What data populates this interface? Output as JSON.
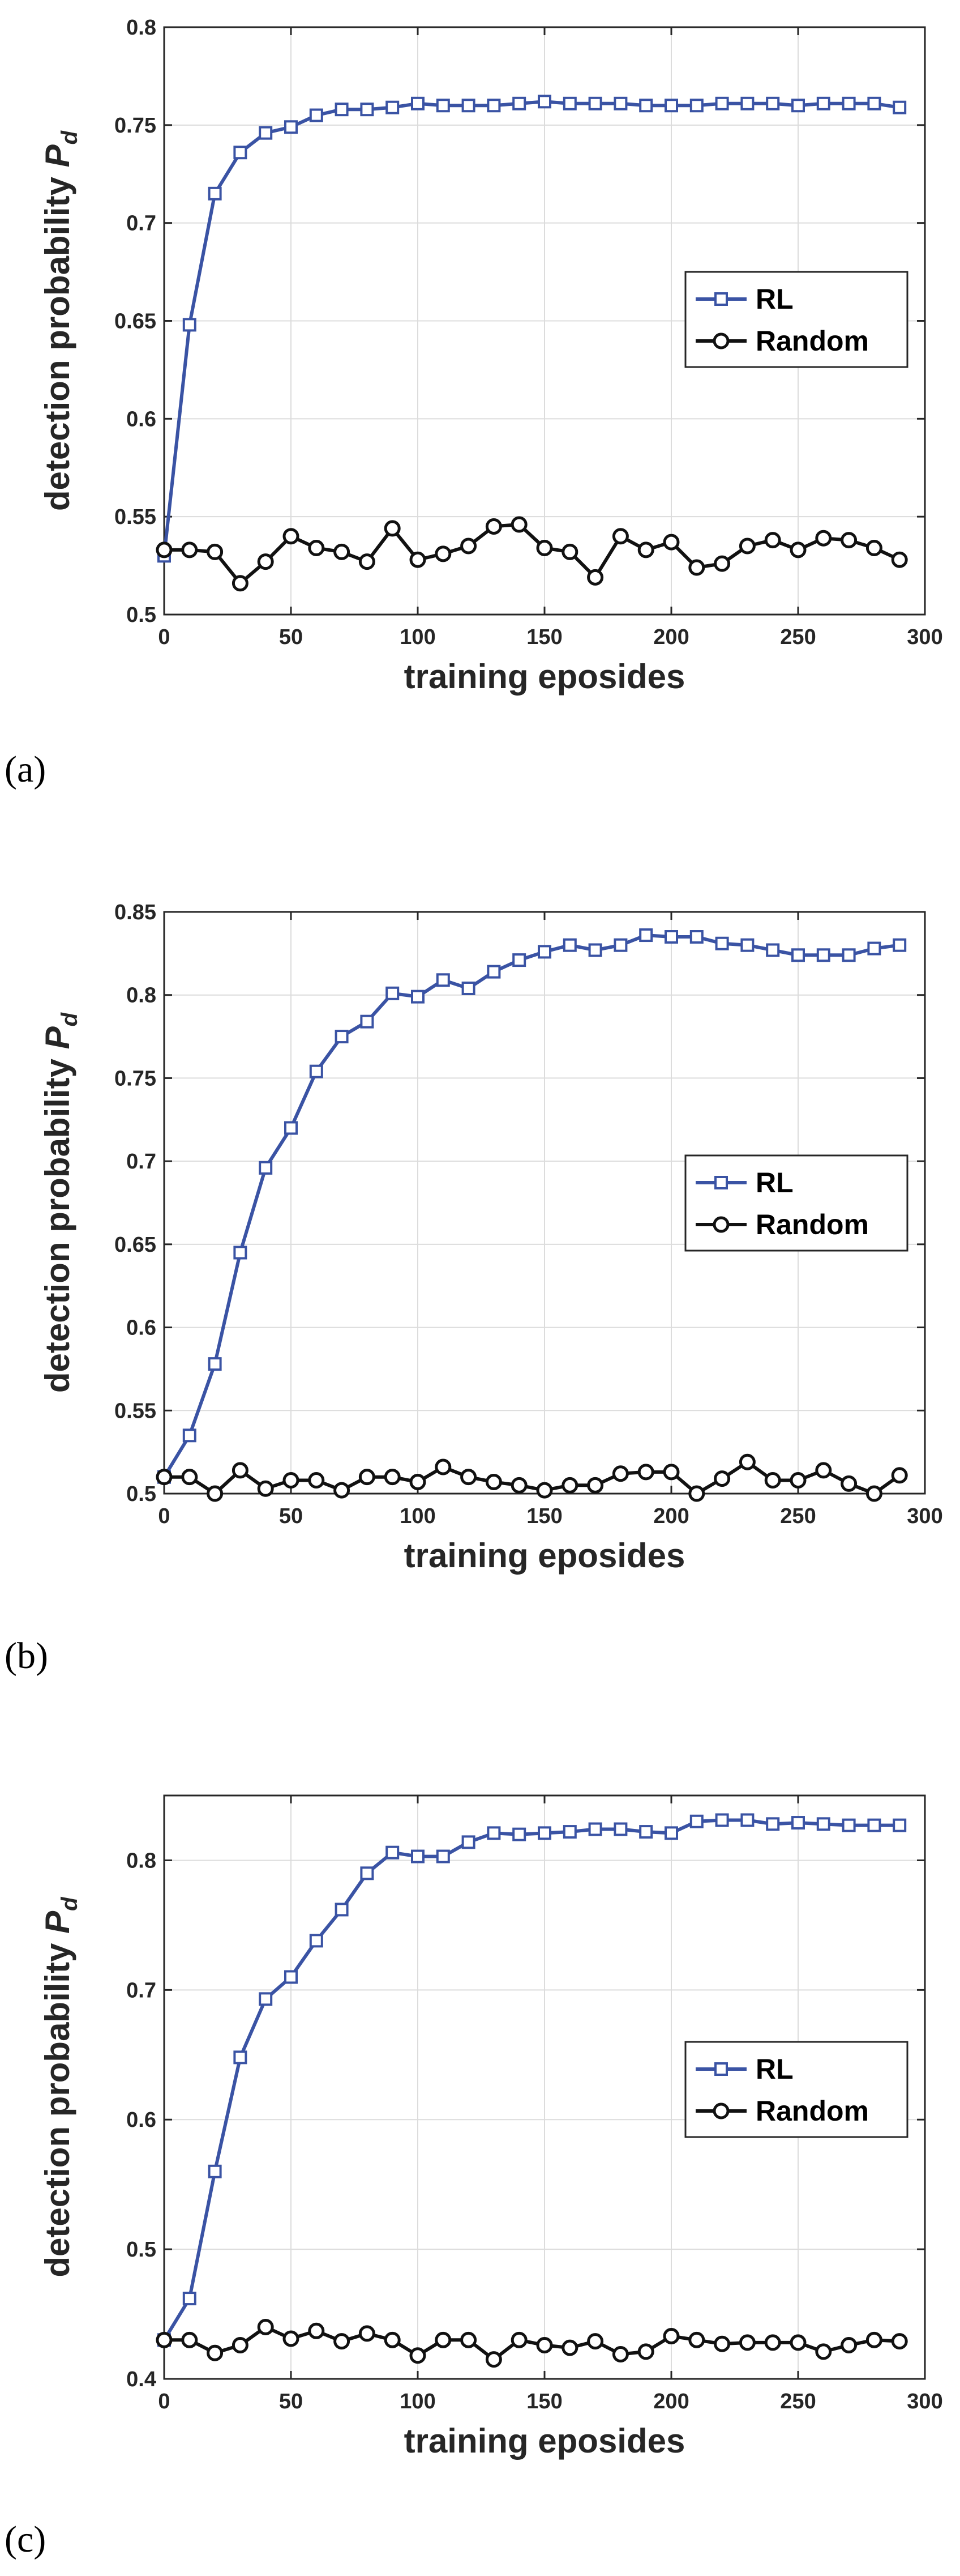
{
  "chart_data": [
    {
      "type": "line",
      "panel_label": "(a)",
      "xlabel": "training eposides",
      "ylabel": "detection probability",
      "ylabel_symbol": "P",
      "ylabel_subscript": "d",
      "xlim": [
        0,
        300
      ],
      "ylim": [
        0.5,
        0.8
      ],
      "xticks": [
        0,
        50,
        100,
        150,
        200,
        250,
        300
      ],
      "xtick_labels": [
        "0",
        "50",
        "100",
        "150",
        "200",
        "250",
        "300"
      ],
      "yticks": [
        0.5,
        0.55,
        0.6,
        0.65,
        0.7,
        0.75,
        0.8
      ],
      "ytick_labels": [
        "0.5",
        "0.55",
        "0.6",
        "0.65",
        "0.7",
        "0.75",
        "0.8"
      ],
      "grid": true,
      "legend": "right",
      "x": [
        0,
        10,
        20,
        30,
        40,
        50,
        60,
        70,
        80,
        90,
        100,
        110,
        120,
        130,
        140,
        150,
        160,
        170,
        180,
        190,
        200,
        210,
        220,
        230,
        240,
        250,
        260,
        270,
        280,
        290
      ],
      "series": [
        {
          "name": "RL",
          "color": "#3a53a4",
          "marker": "square",
          "values": [
            0.53,
            0.648,
            0.715,
            0.736,
            0.746,
            0.749,
            0.755,
            0.758,
            0.758,
            0.759,
            0.761,
            0.76,
            0.76,
            0.76,
            0.761,
            0.762,
            0.761,
            0.761,
            0.761,
            0.76,
            0.76,
            0.76,
            0.761,
            0.761,
            0.761,
            0.76,
            0.761,
            0.761,
            0.761,
            0.759
          ]
        },
        {
          "name": "Random",
          "color": "#111111",
          "marker": "circle",
          "values": [
            0.533,
            0.533,
            0.532,
            0.516,
            0.527,
            0.54,
            0.534,
            0.532,
            0.527,
            0.544,
            0.528,
            0.531,
            0.535,
            0.545,
            0.546,
            0.534,
            0.532,
            0.519,
            0.54,
            0.533,
            0.537,
            0.524,
            0.526,
            0.535,
            0.538,
            0.533,
            0.539,
            0.538,
            0.534,
            0.528
          ]
        }
      ]
    },
    {
      "type": "line",
      "panel_label": "(b)",
      "xlabel": "training eposides",
      "ylabel": "detection probability",
      "ylabel_symbol": "P",
      "ylabel_subscript": "d",
      "xlim": [
        0,
        300
      ],
      "ylim": [
        0.5,
        0.85
      ],
      "xticks": [
        0,
        50,
        100,
        150,
        200,
        250,
        300
      ],
      "xtick_labels": [
        "0",
        "50",
        "100",
        "150",
        "200",
        "250",
        "300"
      ],
      "yticks": [
        0.5,
        0.55,
        0.6,
        0.65,
        0.7,
        0.75,
        0.8,
        0.85
      ],
      "ytick_labels": [
        "0.5",
        "0.55",
        "0.6",
        "0.65",
        "0.7",
        "0.75",
        "0.8",
        "0.85"
      ],
      "grid": true,
      "legend": "right",
      "x": [
        0,
        10,
        20,
        30,
        40,
        50,
        60,
        70,
        80,
        90,
        100,
        110,
        120,
        130,
        140,
        150,
        160,
        170,
        180,
        190,
        200,
        210,
        220,
        230,
        240,
        250,
        260,
        270,
        280,
        290
      ],
      "series": [
        {
          "name": "RL",
          "color": "#3a53a4",
          "marker": "square",
          "values": [
            0.51,
            0.535,
            0.578,
            0.645,
            0.696,
            0.72,
            0.754,
            0.775,
            0.784,
            0.801,
            0.799,
            0.809,
            0.804,
            0.814,
            0.821,
            0.826,
            0.83,
            0.827,
            0.83,
            0.836,
            0.835,
            0.835,
            0.831,
            0.83,
            0.827,
            0.824,
            0.824,
            0.824,
            0.828,
            0.83
          ]
        },
        {
          "name": "Random",
          "color": "#111111",
          "marker": "circle",
          "values": [
            0.51,
            0.51,
            0.5,
            0.514,
            0.503,
            0.508,
            0.508,
            0.502,
            0.51,
            0.51,
            0.507,
            0.516,
            0.51,
            0.507,
            0.505,
            0.502,
            0.505,
            0.505,
            0.512,
            0.513,
            0.513,
            0.5,
            0.509,
            0.519,
            0.508,
            0.508,
            0.514,
            0.506,
            0.5,
            0.511
          ]
        }
      ]
    },
    {
      "type": "line",
      "panel_label": "(c)",
      "xlabel": "training eposides",
      "ylabel": "detection probability",
      "ylabel_symbol": "P",
      "ylabel_subscript": "d",
      "xlim": [
        0,
        300
      ],
      "ylim": [
        0.4,
        0.85
      ],
      "xticks": [
        0,
        50,
        100,
        150,
        200,
        250,
        300
      ],
      "xtick_labels": [
        "0",
        "50",
        "100",
        "150",
        "200",
        "250",
        "300"
      ],
      "yticks": [
        0.4,
        0.5,
        0.6,
        0.7,
        0.8
      ],
      "ytick_labels": [
        "0.4",
        "0.5",
        "0.6",
        "0.7",
        "0.8"
      ],
      "grid": true,
      "legend": "right",
      "x": [
        0,
        10,
        20,
        30,
        40,
        50,
        60,
        70,
        80,
        90,
        100,
        110,
        120,
        130,
        140,
        150,
        160,
        170,
        180,
        190,
        200,
        210,
        220,
        230,
        240,
        250,
        260,
        270,
        280,
        290
      ],
      "series": [
        {
          "name": "RL",
          "color": "#3a53a4",
          "marker": "square",
          "values": [
            0.43,
            0.462,
            0.56,
            0.648,
            0.693,
            0.71,
            0.738,
            0.762,
            0.79,
            0.806,
            0.803,
            0.803,
            0.814,
            0.821,
            0.82,
            0.821,
            0.822,
            0.824,
            0.824,
            0.822,
            0.821,
            0.83,
            0.831,
            0.831,
            0.828,
            0.829,
            0.828,
            0.827,
            0.827,
            0.827
          ]
        },
        {
          "name": "Random",
          "color": "#111111",
          "marker": "circle",
          "values": [
            0.43,
            0.43,
            0.42,
            0.426,
            0.44,
            0.431,
            0.437,
            0.429,
            0.435,
            0.43,
            0.418,
            0.43,
            0.43,
            0.415,
            0.43,
            0.426,
            0.424,
            0.429,
            0.419,
            0.421,
            0.433,
            0.43,
            0.427,
            0.428,
            0.428,
            0.428,
            0.421,
            0.426,
            0.43,
            0.429
          ]
        }
      ]
    }
  ]
}
